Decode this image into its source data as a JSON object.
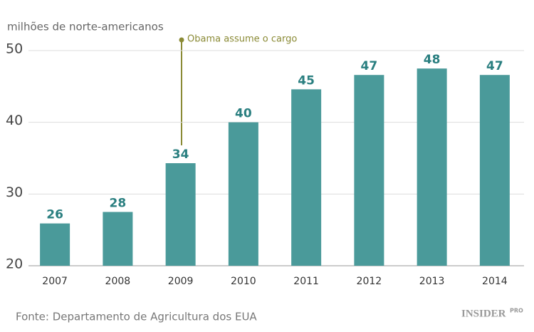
{
  "chart_data": {
    "type": "bar",
    "title": "milhões de norte-americanos",
    "categories": [
      "2007",
      "2008",
      "2009",
      "2010",
      "2011",
      "2012",
      "2013",
      "2014"
    ],
    "values": [
      25.9,
      27.5,
      34.3,
      40,
      44.6,
      46.6,
      47.5,
      46.6
    ],
    "value_labels": [
      "26",
      "28",
      "34",
      "40",
      "45",
      "47",
      "48",
      "47"
    ],
    "color": "#4a9a9a",
    "ylim": [
      20,
      50
    ],
    "yticks": [
      20,
      30,
      40,
      50
    ],
    "grid": true,
    "annotation": "Obama assume o cargo",
    "source": "Fonte: Departamento de Agricultura dos EUA",
    "logo": {
      "name": "INSIDER",
      "badge": "PRO"
    }
  }
}
